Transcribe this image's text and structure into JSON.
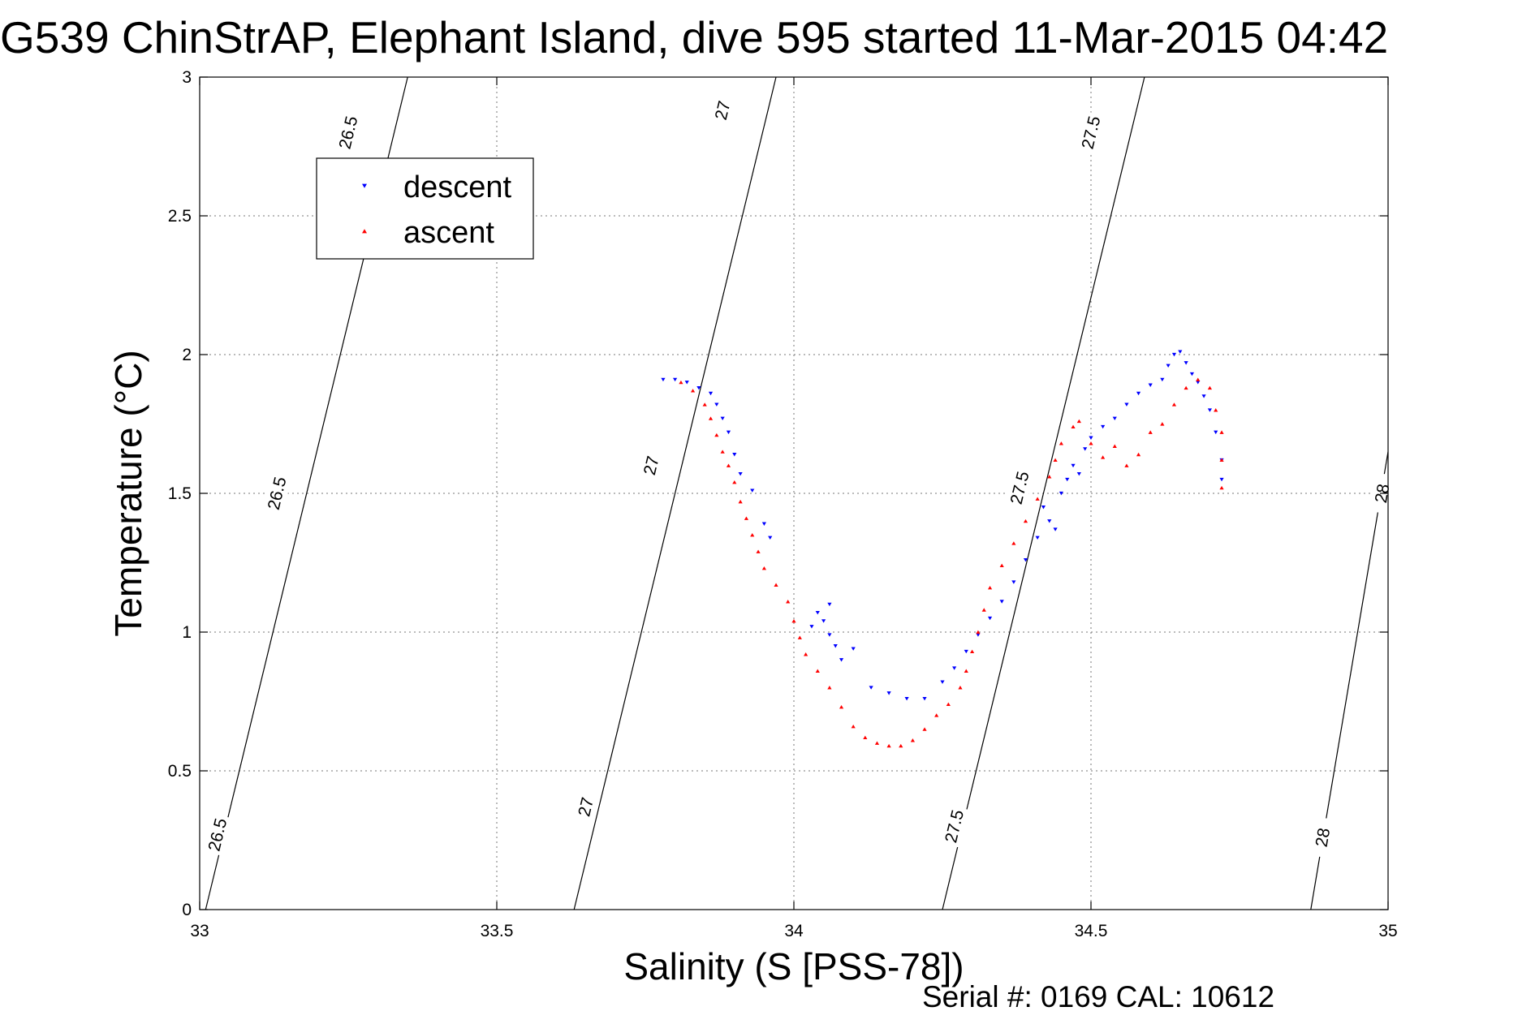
{
  "chart_data": {
    "type": "scatter",
    "title": "G539 ChinStrAP, Elephant Island, dive 595 started 11-Mar-2015 04:42",
    "xlabel": "Salinity (S [PSS-78])",
    "ylabel": "Temperature (°C)",
    "xlim": [
      33,
      35
    ],
    "ylim": [
      0,
      3
    ],
    "x_ticks": [
      "33",
      "33.5",
      "34",
      "34.5",
      "35"
    ],
    "y_ticks": [
      "0",
      "0.5",
      "1",
      "1.5",
      "2",
      "2.5",
      "3"
    ],
    "grid": true,
    "legend_position": "top-left",
    "footer": "Serial #: 0169 CAL: 10612",
    "density_contours": [
      {
        "label": "26.5",
        "points": [
          [
            33.01,
            0.0
          ],
          [
            33.35,
            3.0
          ]
        ]
      },
      {
        "label": "27",
        "points": [
          [
            33.63,
            0.0
          ],
          [
            33.97,
            3.0
          ]
        ]
      },
      {
        "label": "27.5",
        "points": [
          [
            34.25,
            0.0
          ],
          [
            34.59,
            3.0
          ]
        ]
      },
      {
        "label": "28",
        "points": [
          [
            34.87,
            0.0
          ],
          [
            35.0,
            1.65
          ]
        ]
      }
    ],
    "contour_label_positions": [
      {
        "label": "26.5",
        "points": [
          [
            33.03,
            0.27
          ],
          [
            33.13,
            1.5
          ],
          [
            33.25,
            2.8
          ]
        ]
      },
      {
        "label": "27",
        "points": [
          [
            33.65,
            0.37
          ],
          [
            33.76,
            1.6
          ],
          [
            33.88,
            2.88
          ]
        ]
      },
      {
        "label": "27.5",
        "points": [
          [
            34.27,
            0.3
          ],
          [
            34.38,
            1.52
          ],
          [
            34.5,
            2.8
          ]
        ]
      },
      {
        "label": "28",
        "points": [
          [
            34.89,
            0.26
          ],
          [
            34.99,
            1.5
          ]
        ]
      }
    ],
    "series": [
      {
        "name": "descent",
        "color": "#0000ff",
        "marker": "triangle-down",
        "points": [
          [
            33.78,
            1.91
          ],
          [
            33.8,
            1.91
          ],
          [
            33.82,
            1.9
          ],
          [
            33.84,
            1.88
          ],
          [
            33.86,
            1.86
          ],
          [
            33.87,
            1.82
          ],
          [
            33.88,
            1.77
          ],
          [
            33.89,
            1.72
          ],
          [
            33.9,
            1.64
          ],
          [
            33.91,
            1.57
          ],
          [
            33.93,
            1.51
          ],
          [
            33.95,
            1.39
          ],
          [
            33.96,
            1.34
          ],
          [
            34.04,
            1.07
          ],
          [
            34.05,
            1.04
          ],
          [
            34.06,
            0.99
          ],
          [
            34.07,
            0.95
          ],
          [
            34.08,
            0.9
          ],
          [
            34.06,
            1.1
          ],
          [
            34.03,
            1.02
          ],
          [
            34.1,
            0.94
          ],
          [
            34.13,
            0.8
          ],
          [
            34.16,
            0.78
          ],
          [
            34.19,
            0.76
          ],
          [
            34.22,
            0.76
          ],
          [
            34.25,
            0.82
          ],
          [
            34.27,
            0.87
          ],
          [
            34.29,
            0.93
          ],
          [
            34.31,
            0.99
          ],
          [
            34.33,
            1.05
          ],
          [
            34.35,
            1.11
          ],
          [
            34.37,
            1.18
          ],
          [
            34.39,
            1.26
          ],
          [
            34.41,
            1.34
          ],
          [
            34.43,
            1.4
          ],
          [
            34.44,
            1.37
          ],
          [
            34.42,
            1.45
          ],
          [
            34.45,
            1.5
          ],
          [
            34.46,
            1.55
          ],
          [
            34.47,
            1.6
          ],
          [
            34.48,
            1.57
          ],
          [
            34.49,
            1.66
          ],
          [
            34.5,
            1.7
          ],
          [
            34.52,
            1.74
          ],
          [
            34.54,
            1.77
          ],
          [
            34.56,
            1.82
          ],
          [
            34.58,
            1.86
          ],
          [
            34.6,
            1.89
          ],
          [
            34.62,
            1.91
          ],
          [
            34.63,
            1.96
          ],
          [
            34.64,
            2.0
          ],
          [
            34.65,
            2.01
          ],
          [
            34.66,
            1.97
          ],
          [
            34.67,
            1.93
          ],
          [
            34.68,
            1.9
          ],
          [
            34.69,
            1.85
          ],
          [
            34.7,
            1.8
          ],
          [
            34.71,
            1.72
          ],
          [
            34.72,
            1.62
          ],
          [
            34.72,
            1.55
          ]
        ]
      },
      {
        "name": "ascent",
        "color": "#ff0000",
        "marker": "triangle-up",
        "points": [
          [
            33.81,
            1.9
          ],
          [
            33.83,
            1.87
          ],
          [
            33.85,
            1.82
          ],
          [
            33.86,
            1.77
          ],
          [
            33.87,
            1.71
          ],
          [
            33.88,
            1.65
          ],
          [
            33.89,
            1.6
          ],
          [
            33.9,
            1.54
          ],
          [
            33.91,
            1.47
          ],
          [
            33.92,
            1.41
          ],
          [
            33.93,
            1.35
          ],
          [
            33.94,
            1.29
          ],
          [
            33.95,
            1.23
          ],
          [
            33.97,
            1.17
          ],
          [
            33.99,
            1.11
          ],
          [
            34.0,
            1.04
          ],
          [
            34.01,
            0.98
          ],
          [
            34.02,
            0.92
          ],
          [
            34.04,
            0.86
          ],
          [
            34.06,
            0.8
          ],
          [
            34.08,
            0.73
          ],
          [
            34.1,
            0.66
          ],
          [
            34.12,
            0.62
          ],
          [
            34.14,
            0.6
          ],
          [
            34.16,
            0.59
          ],
          [
            34.18,
            0.59
          ],
          [
            34.2,
            0.61
          ],
          [
            34.22,
            0.65
          ],
          [
            34.24,
            0.7
          ],
          [
            34.26,
            0.74
          ],
          [
            34.28,
            0.8
          ],
          [
            34.29,
            0.86
          ],
          [
            34.3,
            0.93
          ],
          [
            34.31,
            1.0
          ],
          [
            34.32,
            1.08
          ],
          [
            34.33,
            1.16
          ],
          [
            34.35,
            1.24
          ],
          [
            34.37,
            1.32
          ],
          [
            34.39,
            1.4
          ],
          [
            34.41,
            1.48
          ],
          [
            34.43,
            1.56
          ],
          [
            34.44,
            1.62
          ],
          [
            34.45,
            1.68
          ],
          [
            34.47,
            1.74
          ],
          [
            34.48,
            1.76
          ],
          [
            34.5,
            1.68
          ],
          [
            34.52,
            1.63
          ],
          [
            34.54,
            1.67
          ],
          [
            34.56,
            1.6
          ],
          [
            34.58,
            1.64
          ],
          [
            34.6,
            1.72
          ],
          [
            34.62,
            1.75
          ],
          [
            34.64,
            1.82
          ],
          [
            34.66,
            1.88
          ],
          [
            34.68,
            1.91
          ],
          [
            34.7,
            1.88
          ],
          [
            34.71,
            1.8
          ],
          [
            34.72,
            1.72
          ],
          [
            34.72,
            1.62
          ],
          [
            34.72,
            1.52
          ]
        ]
      }
    ]
  }
}
